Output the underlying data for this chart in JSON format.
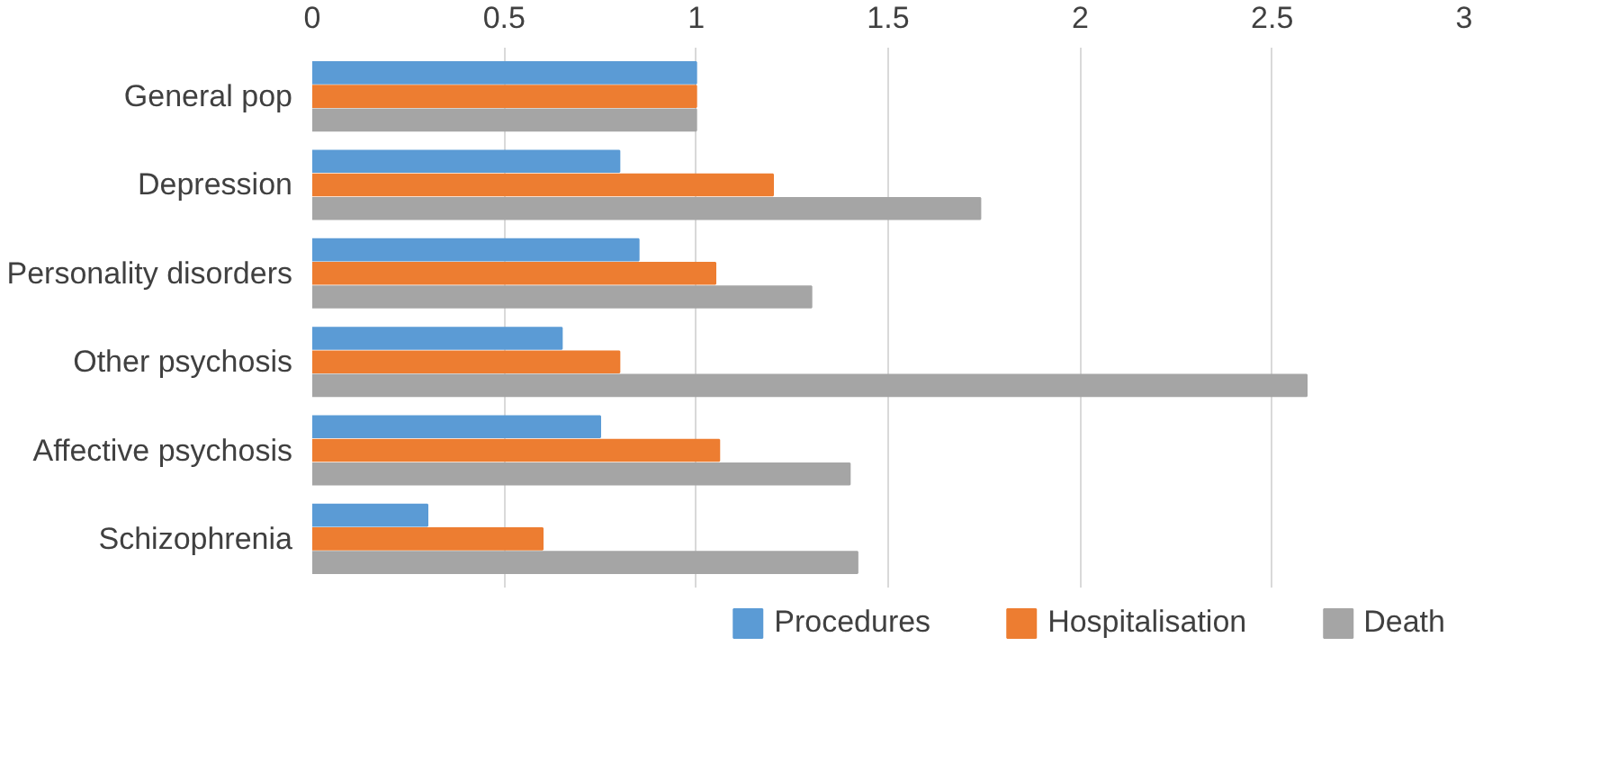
{
  "chart_data": {
    "type": "bar",
    "orientation": "horizontal",
    "categories": [
      "General pop",
      "Depression",
      "Personality disorders",
      "Other psychosis",
      "Affective psychosis",
      "Schizophrenia"
    ],
    "series": [
      {
        "name": "Procedures",
        "color": "#5b9bd5",
        "values": [
          1.0,
          0.8,
          0.85,
          0.65,
          0.75,
          0.3
        ]
      },
      {
        "name": "Hospitalisation",
        "color": "#ed7d31",
        "values": [
          1.0,
          1.2,
          1.05,
          0.8,
          1.06,
          0.6
        ]
      },
      {
        "name": "Death",
        "color": "#a5a5a5",
        "values": [
          1.0,
          1.74,
          1.3,
          2.59,
          1.4,
          1.42
        ]
      }
    ],
    "xlim": [
      0,
      3
    ],
    "xticks": [
      0,
      0.5,
      1,
      1.5,
      2,
      2.5,
      3
    ],
    "grid": "x",
    "legend": "bottom"
  }
}
